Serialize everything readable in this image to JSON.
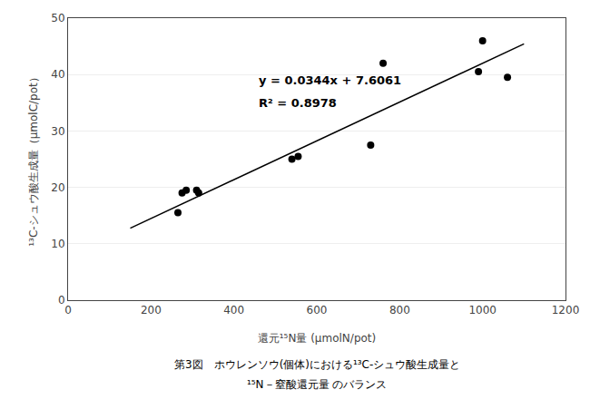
{
  "chart_data": {
    "type": "scatter",
    "x_label": "還元¹⁵N量 (μmolN/pot)",
    "y_label": "¹³C-シュウ酸生成量（μmolC/pot）",
    "annotations": [
      "y = 0.0344x + 7.6061",
      "R² = 0.8978",
      "第3図　ホウレンソウ(個体)における¹³C-シュウ酸生成量と",
      "¹⁵N－窒酸還元量 のバランス"
    ],
    "series": [
      {
        "type": "scatter",
        "marker": "circle",
        "color": "#000000",
        "x": [
          265,
          275,
          285,
          310,
          315,
          540,
          555,
          730,
          760,
          990,
          1000,
          1060
        ],
        "values": [
          15.5,
          19.0,
          19.5,
          19.5,
          19.0,
          25.0,
          25.5,
          27.5,
          42.0,
          40.5,
          46.0,
          39.5
        ]
      },
      {
        "type": "line",
        "line_style": "solid",
        "color": "#000000",
        "x": [
          150,
          1100
        ],
        "values": [
          12.7661,
          45.4461
        ]
      }
    ],
    "xlim": [
      0,
      1200
    ],
    "ylim": [
      0,
      50
    ],
    "xticks": [
      0,
      200,
      400,
      600,
      800,
      1000,
      1200
    ],
    "yticks": [
      0,
      10,
      20,
      30,
      40,
      50
    ],
    "grid": "y"
  }
}
